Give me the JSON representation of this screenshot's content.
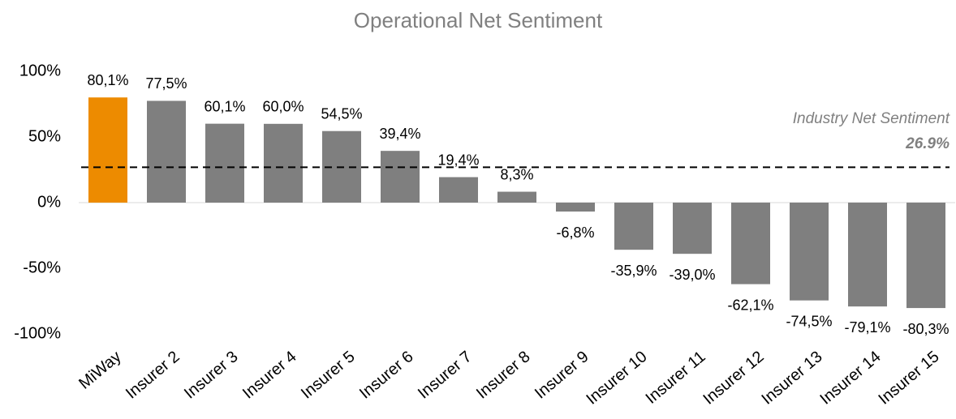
{
  "chart_data": {
    "type": "bar",
    "title": "Operational Net Sentiment",
    "categories": [
      "MiWay",
      "Insurer 2",
      "Insurer 3",
      "Insurer 4",
      "Insurer 5",
      "Insurer 6",
      "Insurer 7",
      "Insurer 8",
      "Insurer 9",
      "Insurer 10",
      "Insurer 11",
      "Insurer 12",
      "Insurer 13",
      "Insurer 14",
      "Insurer 15"
    ],
    "values": [
      80.1,
      77.5,
      60.1,
      60.0,
      54.5,
      39.4,
      19.4,
      8.3,
      -6.8,
      -35.9,
      -39.0,
      -62.1,
      -74.5,
      -79.1,
      -80.3
    ],
    "value_labels": [
      "80,1%",
      "77,5%",
      "60,1%",
      "60,0%",
      "54,5%",
      "39,4%",
      "19,4%",
      "8,3%",
      "-6,8%",
      "-35,9%",
      "-39,0%",
      "-62,1%",
      "-74,5%",
      "-79,1%",
      "-80,3%"
    ],
    "colors": [
      "#ed8b00",
      "#7f7f7f",
      "#7f7f7f",
      "#7f7f7f",
      "#7f7f7f",
      "#7f7f7f",
      "#7f7f7f",
      "#7f7f7f",
      "#7f7f7f",
      "#7f7f7f",
      "#7f7f7f",
      "#7f7f7f",
      "#7f7f7f",
      "#7f7f7f",
      "#7f7f7f"
    ],
    "ylim": [
      -100,
      100
    ],
    "yticks": [
      {
        "value": 100,
        "label": "100%"
      },
      {
        "value": 50,
        "label": "50%"
      },
      {
        "value": 0,
        "label": "0%"
      },
      {
        "value": -50,
        "label": "-50%"
      },
      {
        "value": -100,
        "label": "-100%"
      }
    ],
    "grid": false,
    "reference_line": {
      "label": "Industry Net Sentiment",
      "value": 26.9,
      "value_label": "26.9%"
    }
  }
}
